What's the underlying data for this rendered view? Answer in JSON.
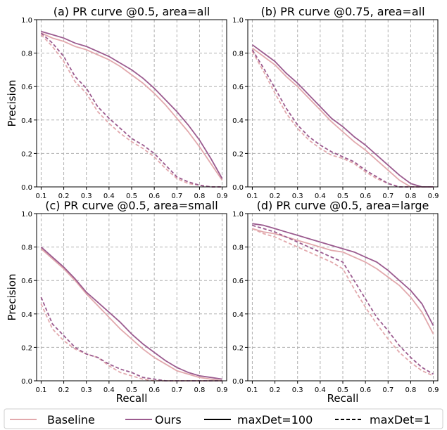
{
  "colors": {
    "baseline": "#e2a9ad",
    "ours": "#9b5b8f",
    "grid": "#b0b0b0"
  },
  "legend": {
    "baseline": "Baseline",
    "ours": "Ours",
    "solid": "maxDet=100",
    "dashed": "maxDet=1"
  },
  "chart_data": [
    {
      "type": "line",
      "title": "(a) PR curve @0.5, area=all",
      "xlabel": "",
      "ylabel": "Precision",
      "xlim": [
        0.08,
        0.92
      ],
      "ylim": [
        0,
        1
      ],
      "xticks": [
        "0.1",
        "0.2",
        "0.3",
        "0.4",
        "0.5",
        "0.6",
        "0.7",
        "0.8",
        "0.9"
      ],
      "yticks": [
        "0.0",
        "0.2",
        "0.4",
        "0.6",
        "0.8",
        "1.0"
      ],
      "x": [
        0.1,
        0.15,
        0.2,
        0.25,
        0.3,
        0.35,
        0.4,
        0.45,
        0.5,
        0.55,
        0.6,
        0.65,
        0.7,
        0.75,
        0.8,
        0.85,
        0.9
      ],
      "series": [
        {
          "name": "Baseline",
          "style": "solid",
          "values": [
            0.92,
            0.89,
            0.87,
            0.84,
            0.82,
            0.79,
            0.76,
            0.72,
            0.67,
            0.62,
            0.56,
            0.49,
            0.41,
            0.33,
            0.24,
            0.14,
            0.04
          ]
        },
        {
          "name": "Ours",
          "style": "solid",
          "values": [
            0.93,
            0.91,
            0.89,
            0.86,
            0.84,
            0.81,
            0.78,
            0.74,
            0.7,
            0.65,
            0.59,
            0.52,
            0.45,
            0.37,
            0.28,
            0.17,
            0.05
          ]
        },
        {
          "name": "Baseline",
          "style": "dashed",
          "values": [
            0.91,
            0.84,
            0.75,
            0.63,
            0.56,
            0.45,
            0.38,
            0.32,
            0.27,
            0.23,
            0.18,
            0.11,
            0.05,
            0.02,
            0.01,
            0.0,
            0.0
          ]
        },
        {
          "name": "Ours",
          "style": "dashed",
          "values": [
            0.92,
            0.86,
            0.78,
            0.66,
            0.59,
            0.48,
            0.41,
            0.35,
            0.29,
            0.25,
            0.2,
            0.13,
            0.06,
            0.03,
            0.01,
            0.0,
            0.0
          ]
        }
      ]
    },
    {
      "type": "line",
      "title": "(b) PR curve @0.75, area=all",
      "xlabel": "",
      "ylabel": "",
      "xlim": [
        0.08,
        0.92
      ],
      "ylim": [
        0,
        1
      ],
      "xticks": [
        "0.1",
        "0.2",
        "0.3",
        "0.4",
        "0.5",
        "0.6",
        "0.7",
        "0.8",
        "0.9"
      ],
      "yticks": [
        "0.0",
        "0.2",
        "0.4",
        "0.6",
        "0.8",
        "1.0"
      ],
      "x": [
        0.1,
        0.15,
        0.2,
        0.25,
        0.3,
        0.35,
        0.4,
        0.45,
        0.5,
        0.55,
        0.6,
        0.65,
        0.7,
        0.75,
        0.8,
        0.85,
        0.9
      ],
      "series": [
        {
          "name": "Baseline",
          "style": "solid",
          "values": [
            0.83,
            0.78,
            0.73,
            0.66,
            0.6,
            0.53,
            0.46,
            0.39,
            0.33,
            0.27,
            0.22,
            0.16,
            0.1,
            0.04,
            0.0,
            0.0,
            0.0
          ]
        },
        {
          "name": "Ours",
          "style": "solid",
          "values": [
            0.85,
            0.8,
            0.75,
            0.68,
            0.62,
            0.55,
            0.48,
            0.41,
            0.36,
            0.3,
            0.25,
            0.19,
            0.13,
            0.07,
            0.02,
            0.0,
            0.0
          ]
        },
        {
          "name": "Baseline",
          "style": "dashed",
          "values": [
            0.81,
            0.69,
            0.56,
            0.44,
            0.35,
            0.28,
            0.23,
            0.19,
            0.17,
            0.14,
            0.09,
            0.05,
            0.02,
            0.0,
            0.0,
            0.0,
            0.0
          ]
        },
        {
          "name": "Ours",
          "style": "dashed",
          "values": [
            0.82,
            0.71,
            0.59,
            0.47,
            0.37,
            0.3,
            0.25,
            0.21,
            0.18,
            0.15,
            0.1,
            0.06,
            0.02,
            0.0,
            0.0,
            0.0,
            0.0
          ]
        }
      ]
    },
    {
      "type": "line",
      "title": "(c) PR curve @0.5, area=small",
      "xlabel": "Recall",
      "ylabel": "Precision",
      "xlim": [
        0.08,
        0.92
      ],
      "ylim": [
        0,
        1
      ],
      "xticks": [
        "0.1",
        "0.2",
        "0.3",
        "0.4",
        "0.5",
        "0.6",
        "0.7",
        "0.8",
        "0.9"
      ],
      "yticks": [
        "0.0",
        "0.2",
        "0.4",
        "0.6",
        "0.8",
        "1.0"
      ],
      "x": [
        0.1,
        0.15,
        0.2,
        0.25,
        0.3,
        0.35,
        0.4,
        0.45,
        0.5,
        0.55,
        0.6,
        0.65,
        0.7,
        0.75,
        0.8,
        0.85,
        0.9
      ],
      "series": [
        {
          "name": "Baseline",
          "style": "solid",
          "values": [
            0.79,
            0.73,
            0.67,
            0.6,
            0.52,
            0.45,
            0.38,
            0.31,
            0.25,
            0.19,
            0.14,
            0.1,
            0.06,
            0.04,
            0.02,
            0.01,
            0.0
          ]
        },
        {
          "name": "Ours",
          "style": "solid",
          "values": [
            0.8,
            0.74,
            0.68,
            0.61,
            0.53,
            0.47,
            0.41,
            0.35,
            0.28,
            0.22,
            0.17,
            0.12,
            0.08,
            0.05,
            0.03,
            0.02,
            0.01
          ]
        },
        {
          "name": "Baseline",
          "style": "dashed",
          "values": [
            0.46,
            0.31,
            0.24,
            0.19,
            0.16,
            0.14,
            0.09,
            0.05,
            0.03,
            0.01,
            0.0,
            0.0,
            0.0,
            0.0,
            0.0,
            0.0,
            0.0
          ]
        },
        {
          "name": "Ours",
          "style": "dashed",
          "values": [
            0.5,
            0.34,
            0.27,
            0.2,
            0.16,
            0.14,
            0.1,
            0.07,
            0.05,
            0.02,
            0.01,
            0.0,
            0.0,
            0.0,
            0.0,
            0.0,
            0.0
          ]
        }
      ]
    },
    {
      "type": "line",
      "title": "(d) PR curve @0.5, area=large",
      "xlabel": "Recall",
      "ylabel": "",
      "xlim": [
        0.08,
        0.92
      ],
      "ylim": [
        0,
        1
      ],
      "xticks": [
        "0.1",
        "0.2",
        "0.3",
        "0.4",
        "0.5",
        "0.6",
        "0.7",
        "0.8",
        "0.9"
      ],
      "yticks": [
        "0.0",
        "0.2",
        "0.4",
        "0.6",
        "0.8",
        "1.0"
      ],
      "x": [
        0.1,
        0.15,
        0.2,
        0.25,
        0.3,
        0.35,
        0.4,
        0.45,
        0.5,
        0.55,
        0.6,
        0.65,
        0.7,
        0.75,
        0.8,
        0.85,
        0.9
      ],
      "series": [
        {
          "name": "Baseline",
          "style": "solid",
          "values": [
            0.91,
            0.89,
            0.88,
            0.86,
            0.84,
            0.82,
            0.8,
            0.78,
            0.77,
            0.74,
            0.71,
            0.67,
            0.62,
            0.57,
            0.5,
            0.41,
            0.28
          ]
        },
        {
          "name": "Ours",
          "style": "solid",
          "values": [
            0.94,
            0.93,
            0.91,
            0.89,
            0.87,
            0.85,
            0.83,
            0.81,
            0.79,
            0.77,
            0.74,
            0.71,
            0.66,
            0.6,
            0.54,
            0.46,
            0.33
          ]
        },
        {
          "name": "Baseline",
          "style": "dashed",
          "values": [
            0.91,
            0.88,
            0.86,
            0.83,
            0.8,
            0.77,
            0.74,
            0.71,
            0.67,
            0.55,
            0.44,
            0.34,
            0.25,
            0.17,
            0.11,
            0.06,
            0.03
          ]
        },
        {
          "name": "Ours",
          "style": "dashed",
          "values": [
            0.93,
            0.91,
            0.89,
            0.86,
            0.83,
            0.8,
            0.77,
            0.74,
            0.71,
            0.6,
            0.49,
            0.38,
            0.3,
            0.21,
            0.14,
            0.08,
            0.04
          ]
        }
      ]
    }
  ]
}
